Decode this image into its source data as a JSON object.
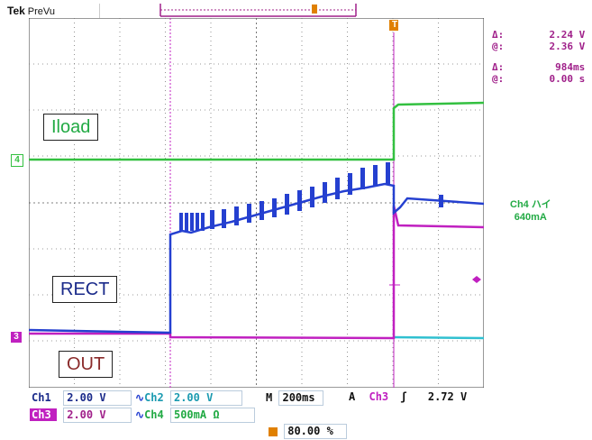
{
  "header": {
    "brand": "Tek",
    "mode": "PreVu"
  },
  "measurements": [
    {
      "symbol": "Δ:",
      "value": "2.24 V"
    },
    {
      "symbol": "@:",
      "value": "2.36 V"
    },
    {
      "symbol": "Δ:",
      "value": "984ms"
    },
    {
      "symbol": "@:",
      "value": "0.00 s"
    }
  ],
  "trigger_info": {
    "line1": "Ch4 ハイ",
    "line2": "640mA"
  },
  "labels": {
    "iload": "Iload",
    "rect": "RECT",
    "out": "OUT"
  },
  "markers": {
    "ch4": "4",
    "ch3": "3",
    "trigger": "T"
  },
  "settings": {
    "ch1_label": "Ch1",
    "ch1_scale": "2.00 V",
    "ch2_label": "Ch2",
    "ch2_scale": "2.00 V",
    "ch3_label": "Ch3",
    "ch3_scale": "2.00 V",
    "ch4_label": "Ch4",
    "ch4_scale": "500mA Ω",
    "timebase_prefix": "M",
    "timebase": "200ms",
    "trigger_mode": "A",
    "trigger_source": "Ch3",
    "trigger_slope": "ʃ",
    "trigger_level": "2.72 V",
    "trigger_position": "80.00 %"
  },
  "colors": {
    "ch1": "#2540d0",
    "ch2": "#30c0d0",
    "ch3": "#c020c0",
    "ch4": "#33c040",
    "grid": "#555555",
    "measure": "#a0208a",
    "trigger_marker": "#e08000"
  }
}
